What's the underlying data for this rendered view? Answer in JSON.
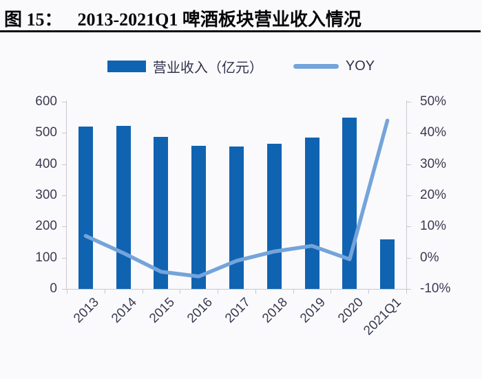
{
  "title": {
    "prefix": "图 15：",
    "text": "2013-2021Q1 啤酒板块营业收入情况"
  },
  "legend": {
    "bar_label": "营业收入（亿元）",
    "line_label": "YOY"
  },
  "colors": {
    "bar": "#1063b1",
    "line": "#74a4da",
    "axis": "#c7c7cd",
    "tick_text": "#3a3a52",
    "title_text": "#060608",
    "background": "#fafafc"
  },
  "chart_data": {
    "type": "bar+line combo",
    "title": "2013-2021Q1 啤酒板块营业收入情况",
    "categories": [
      "2013",
      "2014",
      "2015",
      "2016",
      "2017",
      "2018",
      "2019",
      "2020",
      "2021Q1"
    ],
    "series": [
      {
        "name": "营业收入（亿元）",
        "type": "bar",
        "axis": "left",
        "values": [
          520,
          523,
          487,
          459,
          457,
          466,
          485,
          550,
          159
        ]
      },
      {
        "name": "YOY",
        "type": "line",
        "axis": "right",
        "unit": "%",
        "values": [
          7,
          1.5,
          -4.5,
          -6,
          -1,
          2,
          3.8,
          -0.5,
          44
        ]
      }
    ],
    "left_axis": {
      "min": 0,
      "max": 600,
      "step": 100,
      "tick_labels": [
        "600",
        "500",
        "400",
        "300",
        "200",
        "100",
        "0"
      ]
    },
    "right_axis": {
      "min": -10,
      "max": 50,
      "step": 10,
      "tick_labels": [
        "50%",
        "40%",
        "30%",
        "20%",
        "10%",
        "0%",
        "-10%"
      ]
    },
    "grid": false,
    "legend_position": "top-center",
    "x_label_rotation_deg": -45
  }
}
